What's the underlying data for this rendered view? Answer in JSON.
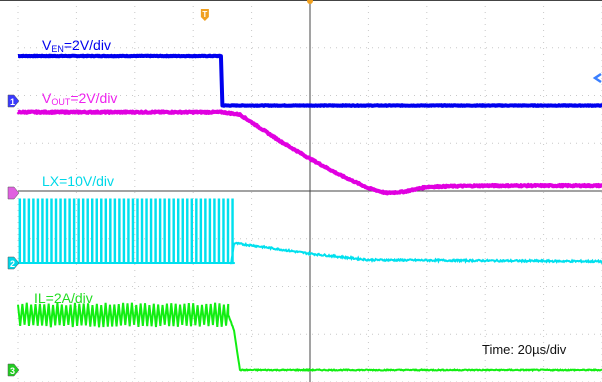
{
  "chart_data": {
    "type": "line",
    "title": "",
    "grid": true,
    "x_unit": "µs",
    "time_base_text": "Time: 20µs/div",
    "x_range": [
      0,
      200
    ],
    "divisions": {
      "x": 10,
      "y": 8
    },
    "trigger_time_us": 64,
    "series": [
      {
        "name": "VEN",
        "label_main": "V",
        "label_sub": "EN",
        "label_tail": "=2V/div",
        "scale": "2V/div",
        "color": "#0000ee",
        "channel": "1",
        "marker_color": "#3a3aff",
        "behavior": "step-down",
        "x": [
          0,
          69.5,
          70,
          200
        ],
        "y": [
          4.0,
          4.0,
          -0.4,
          -0.4
        ]
      },
      {
        "name": "VOUT",
        "label_main": "V",
        "label_sub": "OUT",
        "label_tail": "=2V/div",
        "scale": "2V/div",
        "color": "#e000e0",
        "channel": "",
        "marker_color": "#e060e0",
        "behavior": "decay",
        "x": [
          0,
          70,
          76,
          90,
          100,
          110,
          120,
          126,
          132,
          140,
          150,
          160,
          200
        ],
        "y": [
          3.3,
          3.3,
          3.2,
          2.1,
          1.4,
          0.75,
          0.2,
          0.0,
          0.05,
          0.25,
          0.28,
          0.3,
          0.3
        ]
      },
      {
        "name": "LX",
        "label": "LX=10V/div",
        "scale": "10V/div",
        "color": "#00e0ee",
        "channel": "2",
        "marker_color": "#00d6e8",
        "behavior": "switching-then-decay",
        "switching_end_us": 73,
        "x": [
          0,
          73,
          74,
          80,
          100,
          120,
          200
        ],
        "y_high": 12.2,
        "y_low": 0.0,
        "y": [
          0.0,
          0.0,
          3.8,
          3.4,
          1.8,
          0.6,
          0.3
        ]
      },
      {
        "name": "IL",
        "label": "IL=2A/div",
        "scale": "2A/div",
        "color": "#11ee11",
        "channel": "3",
        "marker_color": "#22cc22",
        "behavior": "ripple-then-drop",
        "ripple_center": 2.5,
        "ripple_amplitude": 0.5,
        "x": [
          0,
          72,
          74,
          76,
          200
        ],
        "y": [
          2.5,
          2.5,
          1.8,
          0.0,
          0.0
        ]
      }
    ]
  }
}
